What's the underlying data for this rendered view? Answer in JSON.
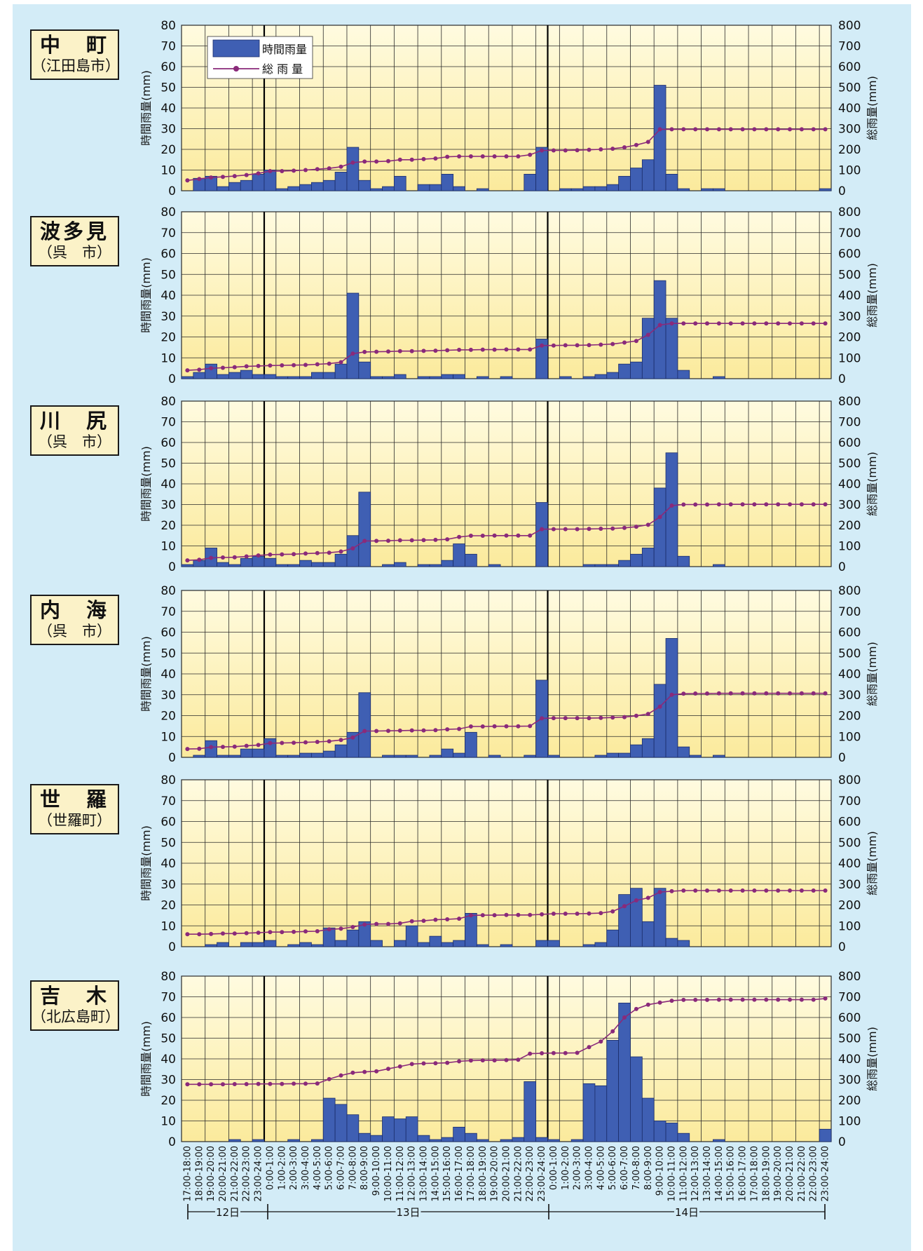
{
  "legend": {
    "bar": "時間雨量",
    "line": "総 雨 量"
  },
  "colors": {
    "bar": "#3f5fb3",
    "bar_edge": "#1b2d6b",
    "line": "#8a2a7a",
    "panel_top": "#fffbe0",
    "panel_bottom": "#fbea9c",
    "grid": "#2a2a2a"
  },
  "days": [
    "12日",
    "13日",
    "14日"
  ],
  "chart_data": {
    "type": "bar+line",
    "y_left_label": "時間雨量(mm)",
    "y_right_label": "総雨量(mm)",
    "y_left_range": [
      0,
      80
    ],
    "y_right_range": [
      0,
      800
    ],
    "y_left_ticks": [
      "0",
      "10",
      "20",
      "30",
      "40",
      "50",
      "60",
      "70",
      "80"
    ],
    "y_right_ticks": [
      "0",
      "100",
      "200",
      "300",
      "400",
      "500",
      "600",
      "700",
      "800"
    ],
    "categories": [
      "17:00-18:00",
      "18:00-19:00",
      "19:00-20:00",
      "20:00-21:00",
      "21:00-22:00",
      "22:00-23:00",
      "23:00-24:00",
      "0:00-1:00",
      "1:00-2:00",
      "2:00-3:00",
      "3:00-4:00",
      "4:00-5:00",
      "5:00-6:00",
      "6:00-7:00",
      "7:00-8:00",
      "8:00-9:00",
      "9:00-10:00",
      "10:00-11:00",
      "11:00-12:00",
      "12:00-13:00",
      "13:00-14:00",
      "14:00-15:00",
      "15:00-16:00",
      "16:00-17:00",
      "17:00-18:00",
      "18:00-19:00",
      "19:00-20:00",
      "20:00-21:00",
      "21:00-22:00",
      "22:00-23:00",
      "23:00-24:00",
      "0:00-1:00",
      "1:00-2:00",
      "2:00-3:00",
      "3:00-4:00",
      "4:00-5:00",
      "5:00-6:00",
      "6:00-7:00",
      "7:00-8:00",
      "8:00-9:00",
      "9:00-10:00",
      "10:00-11:00",
      "11:00-12:00",
      "12:00-13:00",
      "13:00-14:00",
      "14:00-15:00",
      "15:00-16:00",
      "16:00-17:00",
      "17:00-18:00",
      "18:00-19:00",
      "19:00-20:00",
      "20:00-21:00",
      "21:00-22:00",
      "22:00-23:00",
      "23:00-24:00"
    ],
    "day_boundaries_after_index": [
      6,
      30
    ],
    "stations": [
      {
        "name": "中　町",
        "city": "（江田島市）",
        "hourly": [
          0,
          6,
          7,
          2,
          4,
          5,
          8,
          10,
          1,
          2,
          3,
          4,
          5,
          9,
          21,
          5,
          1,
          2,
          7,
          0,
          3,
          3,
          8,
          2,
          0,
          1,
          0,
          0,
          0,
          8,
          21,
          0,
          1,
          1,
          2,
          2,
          3,
          7,
          11,
          15,
          51,
          8,
          1,
          0,
          1,
          1,
          0,
          0,
          0,
          0,
          0,
          0,
          0,
          0,
          1
        ],
        "total": [
          50,
          57,
          64,
          67,
          71,
          76,
          84,
          95,
          95,
          97,
          100,
          104,
          108,
          116,
          136,
          141,
          141,
          143,
          150,
          150,
          153,
          156,
          164,
          166,
          166,
          166,
          166,
          166,
          166,
          174,
          195,
          195,
          195,
          196,
          198,
          200,
          203,
          210,
          221,
          236,
          297,
          297,
          297,
          297,
          297,
          297,
          297,
          297,
          297,
          297,
          297,
          297,
          297,
          297,
          297
        ]
      },
      {
        "name": "波多見",
        "city": "（呉　市）",
        "hourly": [
          1,
          3,
          7,
          2,
          3,
          4,
          2,
          2,
          1,
          1,
          1,
          3,
          3,
          7,
          41,
          8,
          1,
          1,
          2,
          0,
          1,
          1,
          2,
          2,
          0,
          1,
          0,
          1,
          0,
          0,
          19,
          0,
          1,
          0,
          1,
          2,
          3,
          7,
          8,
          29,
          47,
          29,
          4,
          0,
          0,
          1,
          0,
          0,
          0,
          0,
          0,
          0,
          0,
          0,
          0
        ],
        "total": [
          40,
          43,
          50,
          52,
          55,
          59,
          61,
          63,
          64,
          65,
          66,
          69,
          72,
          79,
          120,
          128,
          129,
          130,
          132,
          132,
          133,
          134,
          136,
          138,
          138,
          139,
          139,
          140,
          140,
          140,
          159,
          159,
          160,
          160,
          161,
          163,
          166,
          173,
          181,
          210,
          257,
          265,
          265,
          265,
          265,
          265,
          265,
          265,
          265,
          265,
          265,
          265,
          265,
          265,
          265
        ]
      },
      {
        "name": "川　尻",
        "city": "（呉　市）",
        "hourly": [
          1,
          3,
          9,
          2,
          1,
          4,
          5,
          4,
          1,
          1,
          3,
          2,
          2,
          6,
          15,
          36,
          0,
          1,
          2,
          0,
          1,
          1,
          3,
          11,
          6,
          0,
          1,
          0,
          0,
          0,
          31,
          0,
          0,
          0,
          1,
          1,
          1,
          3,
          6,
          9,
          38,
          55,
          5,
          0,
          0,
          1,
          0,
          0,
          0,
          0,
          0,
          0,
          0,
          0,
          0
        ],
        "total": [
          30,
          33,
          42,
          44,
          45,
          49,
          54,
          58,
          59,
          60,
          63,
          65,
          67,
          73,
          88,
          124,
          124,
          125,
          127,
          127,
          128,
          129,
          132,
          143,
          149,
          149,
          150,
          150,
          150,
          150,
          181,
          181,
          181,
          181,
          182,
          183,
          184,
          187,
          193,
          202,
          240,
          295,
          300,
          300,
          300,
          301,
          301,
          301,
          301,
          301,
          301,
          301,
          301,
          301,
          301
        ]
      },
      {
        "name": "内　海",
        "city": "（呉　市）",
        "hourly": [
          0,
          1,
          8,
          1,
          1,
          4,
          4,
          9,
          1,
          1,
          2,
          2,
          3,
          6,
          12,
          31,
          0,
          1,
          1,
          1,
          0,
          1,
          4,
          2,
          12,
          0,
          1,
          0,
          0,
          1,
          37,
          1,
          0,
          0,
          0,
          1,
          2,
          2,
          6,
          9,
          35,
          57,
          5,
          1,
          0,
          1,
          0,
          0,
          0,
          0,
          0,
          0,
          0,
          0,
          0
        ],
        "total": [
          40,
          41,
          49,
          50,
          51,
          55,
          59,
          68,
          69,
          70,
          72,
          74,
          77,
          83,
          95,
          126,
          126,
          127,
          128,
          129,
          129,
          130,
          134,
          136,
          148,
          148,
          149,
          149,
          149,
          150,
          187,
          188,
          188,
          188,
          188,
          189,
          191,
          193,
          199,
          208,
          243,
          300,
          305,
          306,
          306,
          307,
          307,
          307,
          307,
          307,
          307,
          307,
          307,
          307,
          307
        ]
      },
      {
        "name": "世　羅",
        "city": "（世羅町）",
        "hourly": [
          0,
          0,
          1,
          2,
          0,
          2,
          2,
          3,
          0,
          1,
          2,
          1,
          9,
          3,
          8,
          12,
          3,
          0,
          3,
          10,
          2,
          5,
          2,
          3,
          16,
          1,
          0,
          1,
          0,
          0,
          3,
          3,
          0,
          0,
          1,
          2,
          8,
          25,
          28,
          12,
          28,
          4,
          3,
          0,
          0,
          0,
          0,
          0,
          0,
          0,
          0,
          0,
          0,
          0,
          0
        ],
        "total": [
          60,
          60,
          61,
          63,
          63,
          65,
          67,
          70,
          70,
          71,
          73,
          74,
          83,
          86,
          94,
          106,
          109,
          109,
          112,
          122,
          124,
          129,
          131,
          134,
          150,
          151,
          151,
          152,
          152,
          152,
          155,
          158,
          158,
          158,
          159,
          161,
          169,
          194,
          222,
          234,
          262,
          266,
          269,
          269,
          269,
          269,
          269,
          269,
          269,
          269,
          269,
          269,
          269,
          269,
          269
        ]
      },
      {
        "name": "吉　木",
        "city": "（北広島町）",
        "hourly": [
          0,
          0,
          0,
          0,
          1,
          0,
          1,
          0,
          0,
          1,
          0,
          1,
          21,
          18,
          13,
          4,
          3,
          12,
          11,
          12,
          3,
          1,
          2,
          7,
          4,
          1,
          0,
          1,
          2,
          29,
          2,
          1,
          0,
          1,
          28,
          27,
          49,
          67,
          41,
          21,
          10,
          9,
          4,
          0,
          0,
          1,
          0,
          0,
          0,
          0,
          0,
          0,
          0,
          0,
          6
        ],
        "total": [
          277,
          277,
          277,
          277,
          278,
          278,
          279,
          279,
          279,
          280,
          280,
          281,
          302,
          320,
          333,
          337,
          340,
          352,
          363,
          375,
          378,
          379,
          381,
          388,
          392,
          393,
          393,
          394,
          396,
          425,
          427,
          428,
          428,
          429,
          457,
          484,
          533,
          600,
          641,
          662,
          672,
          681,
          685,
          685,
          685,
          686,
          686,
          686,
          686,
          686,
          686,
          686,
          686,
          686,
          692
        ]
      }
    ]
  }
}
